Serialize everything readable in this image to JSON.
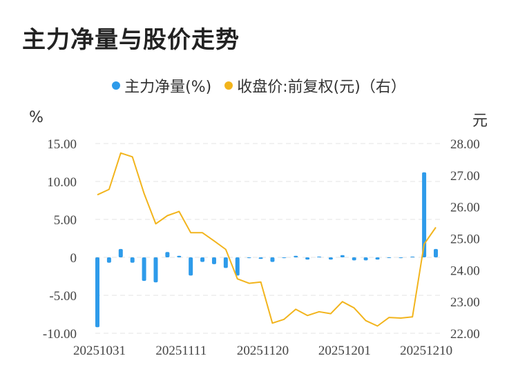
{
  "title": "主力净量与股价走势",
  "legend": {
    "net": "主力净量(%)",
    "price": "收盘价:前复权(元)（右）"
  },
  "units": {
    "left": "%",
    "right": "元"
  },
  "colors": {
    "bar": "#2E9BEA",
    "line": "#F2B41C",
    "grid": "#E3E3E3"
  },
  "chart_data": {
    "type": "bar+line",
    "x_tick_labels": [
      "20251031",
      "20251111",
      "20251120",
      "20251201",
      "20251210"
    ],
    "x_tick_index": [
      0,
      7,
      14,
      21,
      28
    ],
    "left_axis": {
      "ylim": [
        -10,
        15
      ],
      "ticks": [
        "15.00",
        "10.00",
        "5.00",
        "0",
        "-5.00",
        "-10.00"
      ],
      "tick_values": [
        15,
        10,
        5,
        0,
        -5,
        -10
      ]
    },
    "right_axis": {
      "ylim": [
        22,
        28
      ],
      "ticks": [
        "28.00",
        "27.00",
        "26.00",
        "25.00",
        "24.00",
        "23.00",
        "22.00"
      ],
      "tick_values": [
        28,
        27,
        26,
        25,
        24,
        23,
        22
      ]
    },
    "series": [
      {
        "name": "主力净量(%)",
        "type": "bar",
        "axis": "left",
        "values": [
          -9.2,
          -0.7,
          1.1,
          -0.7,
          -3.1,
          -3.3,
          0.7,
          0.2,
          -2.4,
          -0.6,
          -0.9,
          -1.4,
          -2.4,
          -0.1,
          -0.2,
          -0.6,
          -0.1,
          0.2,
          -0.3,
          0.1,
          -0.3,
          0.3,
          -0.4,
          -0.4,
          -0.3,
          0.0,
          -0.1,
          0.1,
          11.2,
          1.1
        ]
      },
      {
        "name": "收盘价:前复权(元)（右）",
        "type": "line",
        "axis": "right",
        "values": [
          26.38,
          26.55,
          27.7,
          27.58,
          26.42,
          25.46,
          25.72,
          25.85,
          25.18,
          25.18,
          24.92,
          24.65,
          23.72,
          23.58,
          23.62,
          22.32,
          22.44,
          22.76,
          22.56,
          22.68,
          22.62,
          23.0,
          22.8,
          22.4,
          22.23,
          22.5,
          22.48,
          22.52,
          24.82,
          25.35
        ]
      }
    ],
    "grid": true,
    "legend_position": "top-center"
  }
}
